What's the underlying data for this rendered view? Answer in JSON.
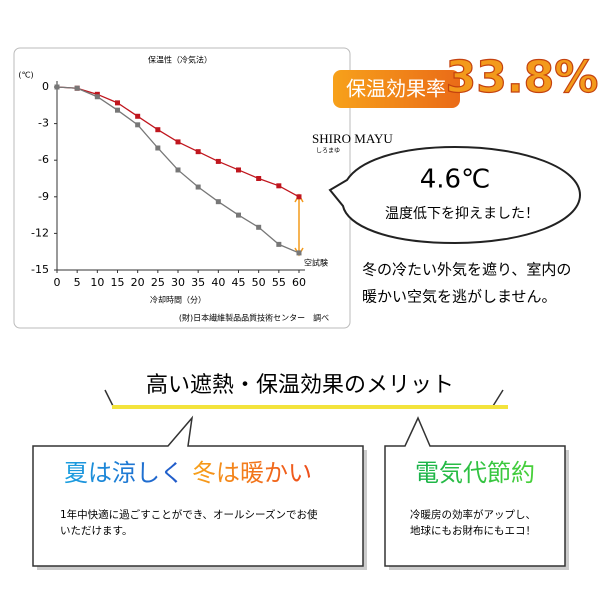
{
  "chart_data": {
    "type": "line",
    "title": "保温性（冷気法）",
    "y_unit_label": "(℃)",
    "x_label": "冷却時間（分）",
    "source": "(財)日本繊維製品品質技術センター　調べ",
    "x": [
      0,
      5,
      10,
      15,
      20,
      25,
      30,
      35,
      40,
      45,
      50,
      55,
      60
    ],
    "series": [
      {
        "name": "SHIRO MAYU",
        "name_ruby": "しろまゆ",
        "color": "#c0161e",
        "values": [
          0,
          -0.1,
          -0.6,
          -1.3,
          -2.4,
          -3.5,
          -4.5,
          -5.3,
          -6.1,
          -6.8,
          -7.5,
          -8.1,
          -9.0
        ]
      },
      {
        "name": "空試験",
        "color": "#777777",
        "values": [
          0,
          -0.1,
          -0.8,
          -1.9,
          -3.1,
          -5.0,
          -6.8,
          -8.2,
          -9.4,
          -10.5,
          -11.5,
          -12.9,
          -13.6
        ]
      }
    ],
    "xlim": [
      0,
      60
    ],
    "ylim": [
      -15,
      0
    ],
    "xticks": [
      0,
      5,
      10,
      15,
      20,
      25,
      30,
      35,
      40,
      45,
      50,
      55,
      60
    ],
    "yticks": [
      0,
      -3,
      -6,
      -9,
      -12,
      -15
    ],
    "annotations": {
      "difference": "4.6℃",
      "difference_note": "温度低下を抑えました！"
    }
  },
  "badge": {
    "label": "保温効果率",
    "value": "33.8%"
  },
  "description": [
    "冬の冷たい外気を遮り、室内の",
    "暖かい空気を逃がしません。"
  ],
  "section_title": "高い遮熱・保温効果のメリット",
  "box1": {
    "title_cool": "夏は涼しく",
    "title_warm": "冬は暖かい",
    "lines": [
      "1年中快適に過ごすことができ、オールシーズンでお使",
      "いただけます。"
    ]
  },
  "box2": {
    "title": "電気代節約",
    "lines": [
      "冷暖房の効率がアップし、",
      "地球にもお財布にもエコ！"
    ]
  }
}
